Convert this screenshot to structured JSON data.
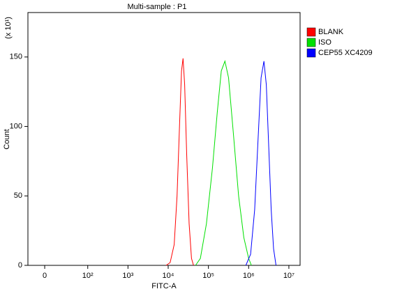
{
  "chart_data": {
    "type": "line",
    "title": "Multi-sample : P1",
    "x_label": "FITC-A",
    "y_label": "Count",
    "y_multiplier": "(x 10¹)",
    "xscale": "biexponential",
    "xlim": [
      -39,
      19000000
    ],
    "ylim": [
      0,
      182
    ],
    "xticks": [
      0,
      {
        "value": 100,
        "label": "10²"
      },
      {
        "value": 1000,
        "label": "10³"
      },
      {
        "value": 10000,
        "label": "10⁴"
      },
      {
        "value": 100000,
        "label": "10⁵"
      },
      {
        "value": 1000000,
        "label": "10⁶"
      },
      {
        "value": 10000000,
        "label": "10⁷"
      }
    ],
    "yticks": [
      0,
      50,
      100,
      150
    ],
    "series": [
      {
        "name": "BLANK",
        "color": "#ff0000",
        "x": [
          8900,
          11200,
          14100,
          16600,
          19100,
          21400,
          23400,
          25700,
          28800,
          33100,
          38000,
          42700
        ],
        "values": [
          0,
          2,
          15,
          50,
          100,
          140,
          149,
          130,
          80,
          30,
          5,
          0
        ]
      },
      {
        "name": "ISO",
        "color": "#00e000",
        "x": [
          47900,
          63100,
          89100,
          126000,
          166000,
          209000,
          257000,
          316000,
          417000,
          562000,
          759000,
          1000000,
          1170000
        ],
        "values": [
          0,
          5,
          30,
          70,
          110,
          140,
          147,
          135,
          95,
          50,
          20,
          5,
          0
        ]
      },
      {
        "name": "CEP55 XC4209",
        "color": "#0000ff",
        "x": [
          851000,
          1120000,
          1410000,
          1740000,
          2040000,
          2400000,
          2750000,
          3160000,
          3630000,
          4170000,
          4790000
        ],
        "values": [
          0,
          8,
          40,
          95,
          135,
          147,
          130,
          85,
          40,
          12,
          0
        ]
      }
    ]
  }
}
